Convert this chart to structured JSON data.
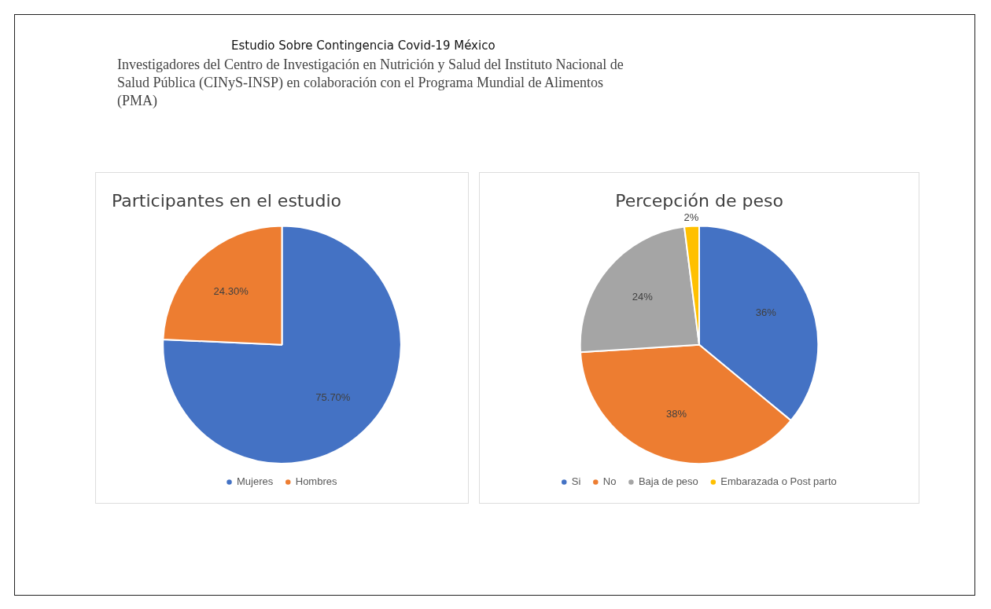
{
  "chart_data": [
    {
      "type": "other",
      "title": "Estudio Sobre Contingencia Covid-19 México",
      "subtitle": "Investigadores del Centro de Investigación en Nutrición y Salud del Instituto Nacional de Salud Pública (CINyS-INSP) en colaboración con el Programa Mundial de Alimentos (PMA)"
    },
    {
      "type": "pie",
      "title": "Participantes en el estudio",
      "categories": [
        "Mujeres",
        "Hombres"
      ],
      "values": [
        75.7,
        24.3
      ],
      "colors": [
        "#4472c4",
        "#ed7d31"
      ],
      "value_labels": [
        "75.70%",
        "24.30%"
      ],
      "legend": "bottom"
    },
    {
      "type": "pie",
      "title": "Percepción de peso",
      "categories": [
        "Si",
        "No",
        "Baja de peso",
        "Embarazada o Post parto"
      ],
      "values": [
        36,
        38,
        24,
        2
      ],
      "colors": [
        "#4472c4",
        "#ed7d31",
        "#a5a5a5",
        "#ffc000"
      ],
      "value_labels": [
        "36%",
        "38%",
        "24%",
        "2%"
      ],
      "legend": "bottom"
    }
  ]
}
